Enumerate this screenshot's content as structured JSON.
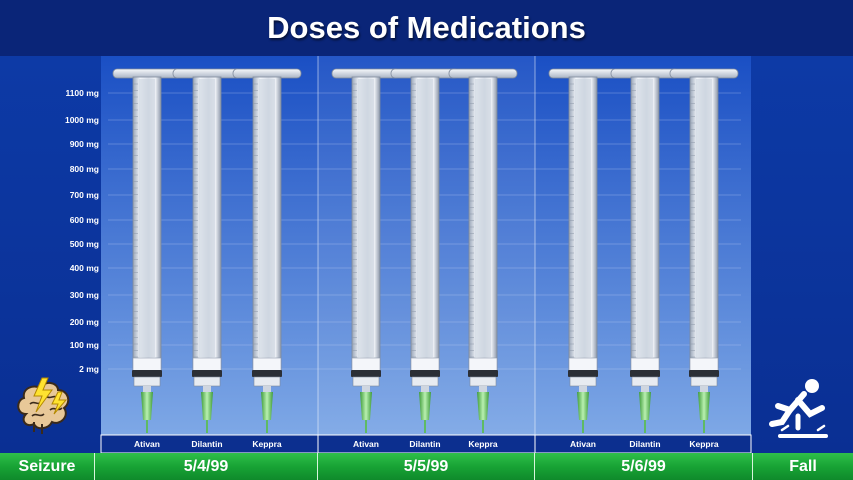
{
  "title": "Doses of Medications",
  "colors": {
    "header_bg": "#0a2578",
    "chart_bg_top": "#1a4fc4",
    "chart_bg_bottom": "#7ea8e6",
    "footer_green": "#18a335",
    "needle_green": "#6fcf6a"
  },
  "left_event": {
    "label": "Seizure",
    "icon": "brain-lightning-icon"
  },
  "right_event": {
    "label": "Fall",
    "icon": "person-falling-icon"
  },
  "chart_data": {
    "type": "bar",
    "title": "Doses of Medications",
    "y_unit": "mg",
    "y_ticks": [
      "1100 mg",
      "1000 mg",
      "900 mg",
      "800 mg",
      "700 mg",
      "600 mg",
      "500 mg",
      "400 mg",
      "300 mg",
      "200 mg",
      "100 mg",
      "2 mg"
    ],
    "y_tick_values": [
      1100,
      1000,
      900,
      800,
      700,
      600,
      500,
      400,
      300,
      200,
      100,
      2
    ],
    "ylim": [
      0,
      1150
    ],
    "grid": true,
    "groups": [
      {
        "date": "5/4/99",
        "drugs": [
          "Ativan",
          "Dilantin",
          "Keppra"
        ],
        "values": [
          0,
          0,
          0
        ]
      },
      {
        "date": "5/5/99",
        "drugs": [
          "Ativan",
          "Dilantin",
          "Keppra"
        ],
        "values": [
          0,
          0,
          0
        ]
      },
      {
        "date": "5/6/99",
        "drugs": [
          "Ativan",
          "Dilantin",
          "Keppra"
        ],
        "values": [
          0,
          0,
          0
        ]
      }
    ]
  }
}
